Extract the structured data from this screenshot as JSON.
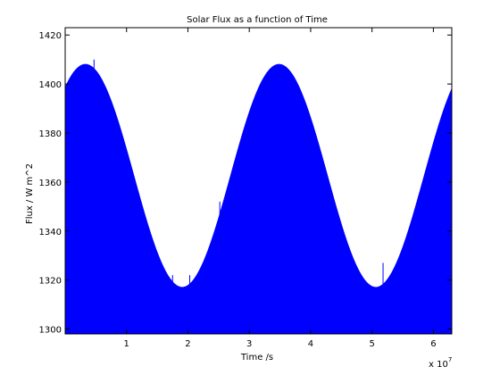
{
  "chart_data": {
    "type": "area",
    "title": "Solar Flux as a function of Time",
    "xlabel": "Time /s",
    "ylabel": "Flux / W m^2",
    "x_multiplier": "x 10",
    "x_multiplier_exponent": "7",
    "xlim": [
      0,
      6.3
    ],
    "ylim": [
      1298,
      1423
    ],
    "x_ticks": [
      1,
      2,
      3,
      4,
      5,
      6
    ],
    "y_ticks": [
      1300,
      1320,
      1340,
      1360,
      1380,
      1400,
      1420
    ],
    "grid": false,
    "fill_color": "#0000ff",
    "series": [
      {
        "curve": {
          "mean": 1362.5,
          "amplitude": 45.5,
          "period": 3.155,
          "peak_x": 0.33
        },
        "spikes": [
          {
            "x": 0.47,
            "y": 1410
          },
          {
            "x": 1.75,
            "y": 1322
          },
          {
            "x": 2.03,
            "y": 1322
          },
          {
            "x": 2.52,
            "y": 1352
          },
          {
            "x": 5.18,
            "y": 1327
          }
        ]
      }
    ]
  }
}
